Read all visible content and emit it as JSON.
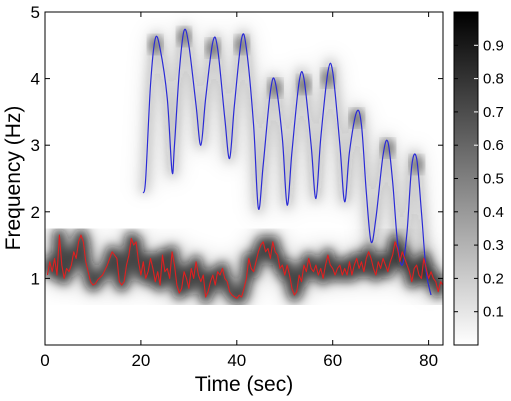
{
  "chart_data": {
    "type": "heatmap",
    "xlabel": "Time (sec)",
    "ylabel": "Frequency (Hz)",
    "xlim": [
      0,
      83
    ],
    "ylim": [
      0,
      5
    ],
    "x_ticks": [
      {
        "value": 0,
        "label": "0"
      },
      {
        "value": 20,
        "label": "20"
      },
      {
        "value": 40,
        "label": "40"
      },
      {
        "value": 60,
        "label": "60"
      },
      {
        "value": 80,
        "label": "80"
      }
    ],
    "y_ticks": [
      {
        "value": 1,
        "label": "1"
      },
      {
        "value": 2,
        "label": "2"
      },
      {
        "value": 3,
        "label": "3"
      },
      {
        "value": 4,
        "label": "4"
      },
      {
        "value": 5,
        "label": "5"
      }
    ],
    "colorbar": {
      "colormap": "gray-reversed",
      "range": [
        0,
        1
      ],
      "ticks": [
        {
          "value": 0.1,
          "label": "0.1"
        },
        {
          "value": 0.2,
          "label": "0.2"
        },
        {
          "value": 0.3,
          "label": "0.3"
        },
        {
          "value": 0.4,
          "label": "0.4"
        },
        {
          "value": 0.5,
          "label": "0.5"
        },
        {
          "value": 0.6,
          "label": "0.6"
        },
        {
          "value": 0.7,
          "label": "0.7"
        },
        {
          "value": 0.8,
          "label": "0.8"
        },
        {
          "value": 0.9,
          "label": "0.9"
        }
      ]
    },
    "series": [
      {
        "color": "#2b2bd6",
        "style": "smooth",
        "points": [
          [
            20.5,
            2.28
          ],
          [
            21.0,
            2.5
          ],
          [
            22.0,
            3.9
          ],
          [
            23.0,
            4.6
          ],
          [
            24.0,
            4.45
          ],
          [
            25.5,
            3.7
          ],
          [
            26.5,
            2.6
          ],
          [
            27.0,
            3.0
          ],
          [
            28.0,
            4.1
          ],
          [
            29.0,
            4.72
          ],
          [
            30.0,
            4.5
          ],
          [
            31.5,
            3.6
          ],
          [
            32.5,
            3.0
          ],
          [
            33.5,
            3.7
          ],
          [
            35.0,
            4.55
          ],
          [
            36.0,
            4.45
          ],
          [
            37.5,
            3.4
          ],
          [
            38.5,
            2.8
          ],
          [
            39.5,
            3.6
          ],
          [
            41.0,
            4.6
          ],
          [
            42.0,
            4.45
          ],
          [
            43.5,
            3.3
          ],
          [
            44.5,
            2.05
          ],
          [
            45.5,
            2.7
          ],
          [
            47.0,
            3.8
          ],
          [
            48.0,
            3.95
          ],
          [
            49.5,
            3.1
          ],
          [
            50.5,
            2.1
          ],
          [
            51.5,
            2.9
          ],
          [
            53.0,
            3.95
          ],
          [
            54.0,
            4.0
          ],
          [
            55.5,
            3.0
          ],
          [
            56.5,
            2.2
          ],
          [
            57.5,
            3.1
          ],
          [
            59.0,
            4.1
          ],
          [
            60.0,
            4.1
          ],
          [
            61.5,
            3.0
          ],
          [
            62.5,
            2.15
          ],
          [
            63.5,
            2.9
          ],
          [
            65.0,
            3.5
          ],
          [
            66.0,
            3.3
          ],
          [
            67.0,
            2.3
          ],
          [
            68.0,
            1.55
          ],
          [
            69.0,
            1.9
          ],
          [
            70.5,
            2.85
          ],
          [
            71.5,
            3.05
          ],
          [
            72.5,
            2.45
          ],
          [
            73.5,
            1.55
          ],
          [
            74.5,
            1.2
          ],
          [
            75.5,
            1.7
          ],
          [
            76.5,
            2.7
          ],
          [
            77.5,
            2.8
          ],
          [
            78.5,
            2.0
          ],
          [
            79.5,
            1.1
          ],
          [
            80.5,
            0.75
          ]
        ]
      },
      {
        "color": "#e02020",
        "style": "jagged",
        "points": [
          [
            0.5,
            1.05
          ],
          [
            1.0,
            1.25
          ],
          [
            1.5,
            1.1
          ],
          [
            2.0,
            1.3
          ],
          [
            2.5,
            1.05
          ],
          [
            3.0,
            1.65
          ],
          [
            3.5,
            1.2
          ],
          [
            4.0,
            1.0
          ],
          [
            4.5,
            1.15
          ],
          [
            5.0,
            1.1
          ],
          [
            5.5,
            1.2
          ],
          [
            6.0,
            1.4
          ],
          [
            6.5,
            1.3
          ],
          [
            7.0,
            1.55
          ],
          [
            7.5,
            1.65
          ],
          [
            8.0,
            1.55
          ],
          [
            8.5,
            1.25
          ],
          [
            9.0,
            1.1
          ],
          [
            9.5,
            0.95
          ],
          [
            10.0,
            0.9
          ],
          [
            10.5,
            0.92
          ],
          [
            11.0,
            0.98
          ],
          [
            12.0,
            1.05
          ],
          [
            13.0,
            1.2
          ],
          [
            14.0,
            1.4
          ],
          [
            15.0,
            1.3
          ],
          [
            15.5,
            0.95
          ],
          [
            16.0,
            0.9
          ],
          [
            16.5,
            0.95
          ],
          [
            17.0,
            1.2
          ],
          [
            17.5,
            1.35
          ],
          [
            18.0,
            1.6
          ],
          [
            18.5,
            1.5
          ],
          [
            19.0,
            1.55
          ],
          [
            19.5,
            1.25
          ],
          [
            20.0,
            1.05
          ],
          [
            20.5,
            1.25
          ],
          [
            21.0,
            1.0
          ],
          [
            21.5,
            1.1
          ],
          [
            22.0,
            1.3
          ],
          [
            22.5,
            1.15
          ],
          [
            23.0,
            0.95
          ],
          [
            23.5,
            1.1
          ],
          [
            24.0,
            0.9
          ],
          [
            24.5,
            1.35
          ],
          [
            25.0,
            1.1
          ],
          [
            25.5,
            1.15
          ],
          [
            26.0,
            1.0
          ],
          [
            26.5,
            1.4
          ],
          [
            27.0,
            1.2
          ],
          [
            27.5,
            0.9
          ],
          [
            28.0,
            0.78
          ],
          [
            28.5,
            0.85
          ],
          [
            29.0,
            1.1
          ],
          [
            29.5,
            1.0
          ],
          [
            30.0,
            0.85
          ],
          [
            30.5,
            1.15
          ],
          [
            31.0,
            1.0
          ],
          [
            31.5,
            1.25
          ],
          [
            32.0,
            1.05
          ],
          [
            32.5,
            0.95
          ],
          [
            33.0,
            1.05
          ],
          [
            33.5,
            0.72
          ],
          [
            34.0,
            0.8
          ],
          [
            34.5,
            0.95
          ],
          [
            35.0,
            1.05
          ],
          [
            35.5,
            0.9
          ],
          [
            36.0,
            1.1
          ],
          [
            36.5,
            1.05
          ],
          [
            37.0,
            1.15
          ],
          [
            37.5,
            1.0
          ],
          [
            38.0,
            0.95
          ],
          [
            38.5,
            0.8
          ],
          [
            39.0,
            0.75
          ],
          [
            40.0,
            0.7
          ],
          [
            40.5,
            0.75
          ],
          [
            41.0,
            0.72
          ],
          [
            41.5,
            0.85
          ],
          [
            42.0,
            1.0
          ],
          [
            42.5,
            1.3
          ],
          [
            43.0,
            1.15
          ],
          [
            43.5,
            1.1
          ],
          [
            44.0,
            1.25
          ],
          [
            44.5,
            1.4
          ],
          [
            45.0,
            1.5
          ],
          [
            45.5,
            1.55
          ],
          [
            46.0,
            1.4
          ],
          [
            46.5,
            1.45
          ],
          [
            47.0,
            1.3
          ],
          [
            47.5,
            1.55
          ],
          [
            48.0,
            1.4
          ],
          [
            48.5,
            1.35
          ],
          [
            49.0,
            1.15
          ],
          [
            49.5,
            1.2
          ],
          [
            50.0,
            1.05
          ],
          [
            50.5,
            1.2
          ],
          [
            51.0,
            1.05
          ],
          [
            51.5,
            0.85
          ],
          [
            52.0,
            0.75
          ],
          [
            52.5,
            0.8
          ],
          [
            53.0,
            1.05
          ],
          [
            53.5,
            0.95
          ],
          [
            54.0,
            1.2
          ],
          [
            54.5,
            1.1
          ],
          [
            55.0,
            1.3
          ],
          [
            55.5,
            1.15
          ],
          [
            56.0,
            1.1
          ],
          [
            56.5,
            1.2
          ],
          [
            57.0,
            1.05
          ],
          [
            57.5,
            1.15
          ],
          [
            58.0,
            1.0
          ],
          [
            58.5,
            1.2
          ],
          [
            59.0,
            1.35
          ],
          [
            59.5,
            1.2
          ],
          [
            60.0,
            1.15
          ],
          [
            60.5,
            1.05
          ],
          [
            61.0,
            1.15
          ],
          [
            61.5,
            1.2
          ],
          [
            62.0,
            1.05
          ],
          [
            62.5,
            1.15
          ],
          [
            63.0,
            1.05
          ],
          [
            63.5,
            1.25
          ],
          [
            64.0,
            1.05
          ],
          [
            64.5,
            1.2
          ],
          [
            65.0,
            1.3
          ],
          [
            65.5,
            1.15
          ],
          [
            66.0,
            1.25
          ],
          [
            66.5,
            1.1
          ],
          [
            67.0,
            1.3
          ],
          [
            67.5,
            1.4
          ],
          [
            68.0,
            1.3
          ],
          [
            68.5,
            1.15
          ],
          [
            69.0,
            1.05
          ],
          [
            69.5,
            1.25
          ],
          [
            70.0,
            1.15
          ],
          [
            70.5,
            1.3
          ],
          [
            71.0,
            1.2
          ],
          [
            71.5,
            1.1
          ],
          [
            72.0,
            1.25
          ],
          [
            72.5,
            1.35
          ],
          [
            73.0,
            1.55
          ],
          [
            73.5,
            1.45
          ],
          [
            74.0,
            1.25
          ],
          [
            74.5,
            1.4
          ],
          [
            75.0,
            1.3
          ],
          [
            75.5,
            1.2
          ],
          [
            76.0,
            1.1
          ],
          [
            76.5,
            0.95
          ],
          [
            77.0,
            1.15
          ],
          [
            77.5,
            1.2
          ],
          [
            78.0,
            1.05
          ],
          [
            78.5,
            1.0
          ],
          [
            79.0,
            1.3
          ],
          [
            79.5,
            1.15
          ],
          [
            80.0,
            1.0
          ],
          [
            80.5,
            1.1
          ],
          [
            81.0,
            1.0
          ],
          [
            81.5,
            0.95
          ],
          [
            82.0,
            0.8
          ],
          [
            82.5,
            0.95
          ],
          [
            83.0,
            0.9
          ]
        ]
      }
    ]
  }
}
